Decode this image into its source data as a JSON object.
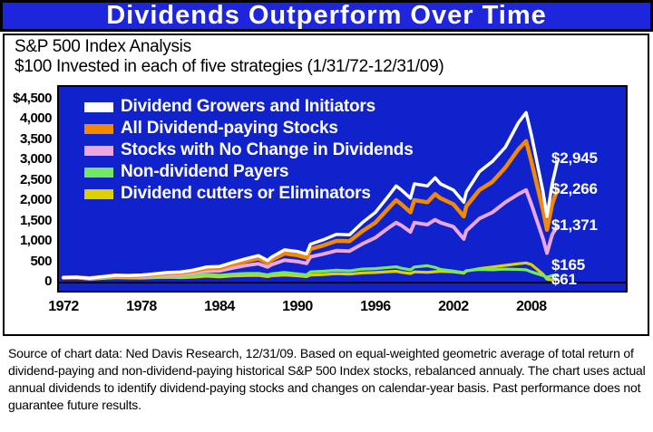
{
  "title": "Dividends Outperform Over Time",
  "subtitle_line1": "S&P 500 Index Analysis",
  "subtitle_line2": "$100 Invested in each of five strategies (1/31/72-12/31/09)",
  "source_text": "Source of chart data: Ned Davis Research, 12/31/09. Based on equal-weighted geometric average of total return of dividend-paying and non-dividend-paying historical S&P 500 Index stocks, rebalanced annualy. The chart uses actual annual dividends to identify dividend-paying stocks and changes on calendar-year basis. Past performance does not guarantee future results.",
  "colors": {
    "title_bar_bg": "#1d25dd",
    "plot_bg": "#1022cc",
    "axis_line": "#000000",
    "text": "#000000",
    "legend_text": "#ffffff"
  },
  "chart_data": {
    "type": "line",
    "title": "Dividends Outperform Over Time",
    "xlabel": "",
    "ylabel": "",
    "x_range": [
      1972,
      2010
    ],
    "y_range": [
      0,
      4500
    ],
    "grid": false,
    "legend_position": "top-left-inside",
    "x_tick_labels": [
      "1972",
      "1978",
      "1984",
      "1990",
      "1996",
      "2002",
      "2008"
    ],
    "x_tick_years": [
      1972,
      1978,
      1984,
      1990,
      1996,
      2002,
      2008
    ],
    "y_ticks": [
      {
        "value": 4500,
        "label": "$4,500"
      },
      {
        "value": 4000,
        "label": "4,000"
      },
      {
        "value": 3500,
        "label": "3,500"
      },
      {
        "value": 3000,
        "label": "3,000"
      },
      {
        "value": 2500,
        "label": "2,500"
      },
      {
        "value": 2000,
        "label": "2,000"
      },
      {
        "value": 1500,
        "label": "1,500"
      },
      {
        "value": 1000,
        "label": "1,000"
      },
      {
        "value": 500,
        "label": "500"
      },
      {
        "value": 0,
        "label": "0"
      }
    ],
    "x": [
      1972,
      1973,
      1974,
      1975,
      1976,
      1977,
      1978,
      1979,
      1980,
      1981,
      1982,
      1983,
      1984,
      1985,
      1986,
      1987,
      1987.7,
      1988,
      1989,
      1990,
      1990.7,
      1991,
      1992,
      1993,
      1994,
      1995,
      1996,
      1997,
      1997.6,
      1998,
      1998.7,
      1999,
      2000,
      2000.6,
      2001,
      2002,
      2002.8,
      2003,
      2004,
      2005,
      2006,
      2007,
      2007.6,
      2008,
      2008.9,
      2009.2,
      2009.6,
      2010
    ],
    "series": [
      {
        "name": "Dividend Growers and Initiators",
        "color": "#ffffff",
        "stroke_width": 3.5,
        "end_value": 2945,
        "end_label": "$2,945",
        "label_dy": -3,
        "values": [
          100,
          108,
          85,
          120,
          155,
          150,
          160,
          190,
          225,
          235,
          285,
          360,
          370,
          470,
          560,
          640,
          520,
          600,
          780,
          740,
          680,
          920,
          1030,
          1160,
          1150,
          1450,
          1700,
          2100,
          2350,
          2250,
          2050,
          2400,
          2350,
          2550,
          2400,
          2250,
          1950,
          2200,
          2700,
          2950,
          3300,
          3900,
          4150,
          3600,
          2200,
          1600,
          2400,
          2945
        ]
      },
      {
        "name": "All Dividend-paying Stocks",
        "color": "#f28900",
        "stroke_width": 4.5,
        "end_value": 2266,
        "end_label": "$2,266",
        "label_dy": 0,
        "values": [
          100,
          106,
          82,
          115,
          148,
          142,
          150,
          178,
          208,
          218,
          262,
          330,
          335,
          425,
          500,
          570,
          460,
          530,
          690,
          650,
          590,
          800,
          890,
          1000,
          990,
          1240,
          1450,
          1800,
          2000,
          1900,
          1700,
          2000,
          1950,
          2150,
          2050,
          1900,
          1600,
          1850,
          2250,
          2450,
          2800,
          3250,
          3450,
          2950,
          1750,
          1270,
          1900,
          2266
        ]
      },
      {
        "name": "Stocks with No Change in Dividends",
        "color": "#eea6e0",
        "stroke_width": 4,
        "end_value": 1371,
        "end_label": "$1,371",
        "label_dy": 0,
        "values": [
          100,
          102,
          75,
          105,
          130,
          125,
          130,
          152,
          175,
          182,
          215,
          268,
          265,
          335,
          395,
          440,
          360,
          415,
          530,
          495,
          450,
          610,
          680,
          760,
          750,
          930,
          1080,
          1320,
          1450,
          1380,
          1220,
          1450,
          1400,
          1520,
          1450,
          1350,
          1050,
          1250,
          1550,
          1700,
          1950,
          2150,
          2250,
          1900,
          1050,
          700,
          1150,
          1371
        ]
      },
      {
        "name": "Non-dividend Payers",
        "color": "#74e862",
        "stroke_width": 3.2,
        "end_value": 165,
        "end_label": "$165",
        "label_dy": -11,
        "values": [
          100,
          95,
          60,
          80,
          100,
          95,
          100,
          120,
          145,
          130,
          150,
          185,
          155,
          185,
          200,
          205,
          165,
          190,
          225,
          190,
          165,
          240,
          255,
          280,
          265,
          310,
          320,
          350,
          365,
          330,
          290,
          360,
          390,
          350,
          300,
          260,
          220,
          270,
          300,
          290,
          310,
          300,
          290,
          240,
          150,
          110,
          150,
          165
        ]
      },
      {
        "name": "Dividend cutters or Eliminators",
        "color": "#decf00",
        "stroke_width": 3.2,
        "end_value": 61,
        "end_label": "$61",
        "label_dy": 1,
        "values": [
          100,
          95,
          65,
          85,
          100,
          92,
          88,
          100,
          108,
          100,
          112,
          135,
          120,
          140,
          150,
          155,
          125,
          145,
          165,
          145,
          125,
          165,
          175,
          195,
          185,
          215,
          225,
          245,
          255,
          230,
          200,
          240,
          230,
          245,
          255,
          240,
          210,
          260,
          320,
          360,
          400,
          440,
          460,
          420,
          180,
          60,
          45,
          61
        ]
      }
    ]
  }
}
